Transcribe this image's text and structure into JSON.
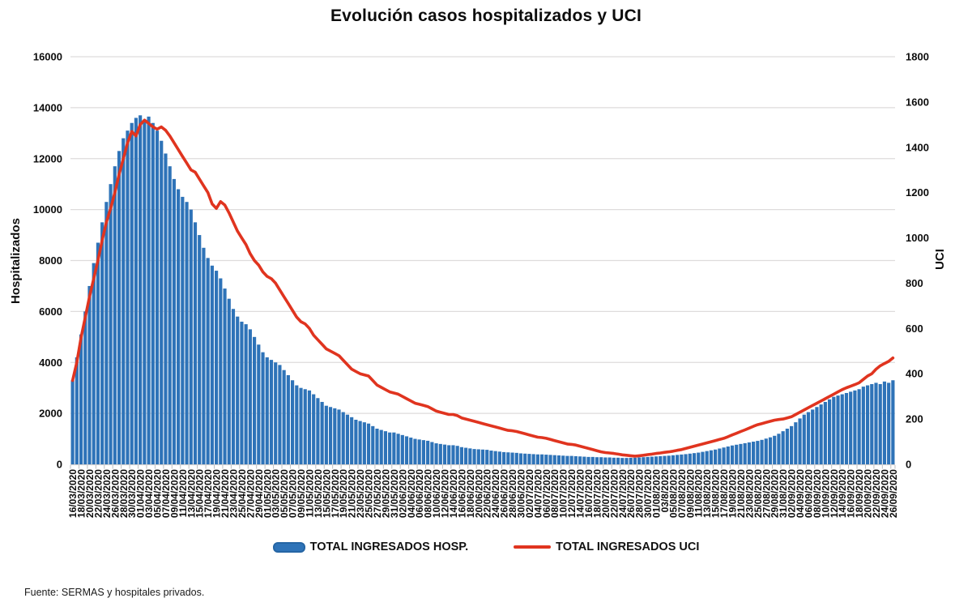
{
  "title": "Evolución casos hospitalizados y UCI",
  "source_note": "Fuente: SERMAS y hospitales privados.",
  "left_axis": {
    "title": "Hospitalizados",
    "ticks": [
      0,
      2000,
      4000,
      6000,
      8000,
      10000,
      12000,
      14000,
      16000
    ],
    "max": 16000
  },
  "right_axis": {
    "title": "UCI",
    "ticks": [
      0,
      200,
      400,
      600,
      800,
      1000,
      1200,
      1400,
      1600,
      1800
    ],
    "max": 1800
  },
  "legend": {
    "items": [
      {
        "label": "TOTAL INGRESADOS HOSP.",
        "marker": "bar",
        "color": "#2e73b8"
      },
      {
        "label": "TOTAL INGRESADOS UCI",
        "marker": "line",
        "color": "#e0341f"
      }
    ]
  },
  "colors": {
    "bar": "#2e73b8",
    "line": "#e0341f",
    "gridline": "#dedcdc",
    "axis_line": "#cfcdcd",
    "tick": "#bfbfbf",
    "text": "#0d0d0d"
  },
  "chart_data": {
    "type": "combo",
    "x_start": "16/03/2020",
    "x_end": "26/09/2020",
    "x_step_days": 1,
    "grid": "horizontal",
    "legend_position": "bottom",
    "left_ylim": [
      0,
      16000
    ],
    "right_ylim": [
      0,
      1800
    ],
    "x_tick_labels": [
      "16/03/2020",
      "18/03/2020",
      "20/03/2020",
      "22/03/2020",
      "24/03/2020",
      "26/03/2020",
      "28/03/2020",
      "30/03/2020",
      "01/04/2020",
      "03/04/2020",
      "05/04/2020",
      "07/04/2020",
      "09/04/2020",
      "11/04/2020",
      "13/04/2020",
      "15/04/2020",
      "17/04/2020",
      "19/04/2020",
      "21/04/2020",
      "23/04/2020",
      "25/04/2020",
      "27/04/2020",
      "29/04/2020",
      "01/05/2020",
      "03/05/2020",
      "05/05/2020",
      "07/05/2020",
      "09/05/2020",
      "11/05/2020",
      "13/05/2020",
      "15/05/2020",
      "17/05/2020",
      "19/05/2020",
      "21/05/2020",
      "23/05/2020",
      "25/05/2020",
      "27/05/2020",
      "29/05/2020",
      "31/05/2020",
      "02/06/2020",
      "04/06/2020",
      "06/06/2020",
      "08/06/2020",
      "10/06/2020",
      "12/06/2020",
      "14/06/2020",
      "16/06/2020",
      "18/06/2020",
      "20/06/2020",
      "22/06/2020",
      "24/06/2020",
      "26/06/2020",
      "28/06/2020",
      "30/06/2020",
      "02/07/2020",
      "04/07/2020",
      "06/07/2020",
      "08/07/2020",
      "10/07/2020",
      "12/07/2020",
      "14/07/2020",
      "16/07/2020",
      "18/07/2020",
      "20/07/2020",
      "22/07/2020",
      "24/07/2020",
      "26/07/2020",
      "28/07/2020",
      "30/07/2020",
      "01/08/2020",
      "03/8/2020",
      "05/08/2020",
      "07/08/2020",
      "09/08/2020",
      "11/08/2020",
      "13/08/2020",
      "15/08/2020",
      "17/08/2020",
      "19/08/2020",
      "21/08/2020",
      "23/08/2020",
      "25/08/2020",
      "27/08/2020",
      "29/08/2020",
      "31/08/2020",
      "02/09/2020",
      "04/09/2020",
      "06/09/2020",
      "08/09/2020",
      "10/09/2020",
      "12/09/2020",
      "14/09/2020",
      "16/09/2020",
      "18/09/2020",
      "20/09/2020",
      "22/09/2020",
      "24/09/2020",
      "26/09/2020"
    ],
    "series": [
      {
        "name": "TOTAL INGRESADOS HOSP.",
        "type": "bar",
        "axis": "left",
        "color": "#2e73b8",
        "values": [
          3300,
          4200,
          5100,
          6000,
          7000,
          7900,
          8700,
          9500,
          10300,
          11000,
          11700,
          12300,
          12800,
          13100,
          13400,
          13600,
          13700,
          13500,
          13650,
          13400,
          13100,
          12700,
          12200,
          11700,
          11200,
          10800,
          10500,
          10300,
          10000,
          9500,
          9000,
          8500,
          8100,
          7800,
          7600,
          7300,
          6900,
          6500,
          6100,
          5800,
          5600,
          5500,
          5300,
          5000,
          4700,
          4400,
          4200,
          4100,
          4000,
          3900,
          3700,
          3500,
          3300,
          3100,
          3000,
          2950,
          2900,
          2750,
          2600,
          2450,
          2300,
          2250,
          2200,
          2150,
          2050,
          1950,
          1850,
          1750,
          1700,
          1650,
          1600,
          1500,
          1400,
          1350,
          1300,
          1250,
          1250,
          1200,
          1150,
          1100,
          1050,
          1000,
          975,
          950,
          925,
          875,
          825,
          800,
          775,
          750,
          750,
          725,
          675,
          650,
          625,
          600,
          590,
          580,
          570,
          540,
          520,
          500,
          480,
          470,
          460,
          450,
          430,
          420,
          410,
          400,
          390,
          390,
          380,
          370,
          360,
          350,
          340,
          330,
          330,
          320,
          310,
          300,
          290,
          290,
          280,
          280,
          270,
          270,
          260,
          260,
          250,
          250,
          255,
          260,
          270,
          280,
          290,
          300,
          310,
          320,
          330,
          340,
          355,
          370,
          385,
          400,
          420,
          440,
          460,
          490,
          520,
          550,
          580,
          620,
          660,
          700,
          740,
          770,
          800,
          830,
          860,
          890,
          920,
          960,
          1010,
          1060,
          1120,
          1200,
          1300,
          1400,
          1500,
          1650,
          1800,
          1950,
          2050,
          2150,
          2250,
          2350,
          2450,
          2550,
          2650,
          2700,
          2750,
          2800,
          2850,
          2900,
          2950,
          3050,
          3100,
          3150,
          3200,
          3150,
          3250,
          3200,
          3300
        ]
      },
      {
        "name": "TOTAL INGRESADOS UCI",
        "type": "line",
        "axis": "right",
        "color": "#e0341f",
        "values": [
          370,
          450,
          560,
          650,
          740,
          820,
          900,
          990,
          1070,
          1130,
          1200,
          1280,
          1350,
          1420,
          1470,
          1450,
          1500,
          1520,
          1505,
          1490,
          1480,
          1490,
          1475,
          1450,
          1420,
          1390,
          1360,
          1330,
          1300,
          1290,
          1260,
          1230,
          1200,
          1150,
          1130,
          1160,
          1145,
          1110,
          1070,
          1030,
          1000,
          970,
          930,
          900,
          880,
          850,
          830,
          820,
          800,
          770,
          740,
          710,
          680,
          650,
          630,
          620,
          600,
          570,
          550,
          530,
          510,
          500,
          490,
          480,
          460,
          440,
          420,
          410,
          400,
          395,
          390,
          370,
          350,
          340,
          330,
          320,
          315,
          310,
          300,
          290,
          280,
          270,
          265,
          260,
          255,
          245,
          235,
          230,
          225,
          220,
          220,
          215,
          205,
          200,
          195,
          190,
          185,
          180,
          175,
          170,
          165,
          160,
          155,
          150,
          148,
          145,
          140,
          135,
          130,
          125,
          120,
          118,
          115,
          110,
          105,
          100,
          95,
          90,
          88,
          85,
          80,
          75,
          70,
          65,
          60,
          55,
          52,
          50,
          48,
          45,
          42,
          40,
          38,
          36,
          38,
          40,
          43,
          45,
          48,
          50,
          53,
          55,
          58,
          62,
          65,
          70,
          75,
          80,
          85,
          90,
          95,
          100,
          105,
          110,
          115,
          122,
          130,
          137,
          145,
          152,
          160,
          168,
          175,
          180,
          185,
          190,
          195,
          198,
          200,
          205,
          210,
          220,
          230,
          240,
          250,
          260,
          270,
          280,
          290,
          300,
          310,
          320,
          330,
          338,
          345,
          352,
          360,
          375,
          390,
          400,
          420,
          435,
          445,
          455,
          470
        ]
      }
    ]
  }
}
